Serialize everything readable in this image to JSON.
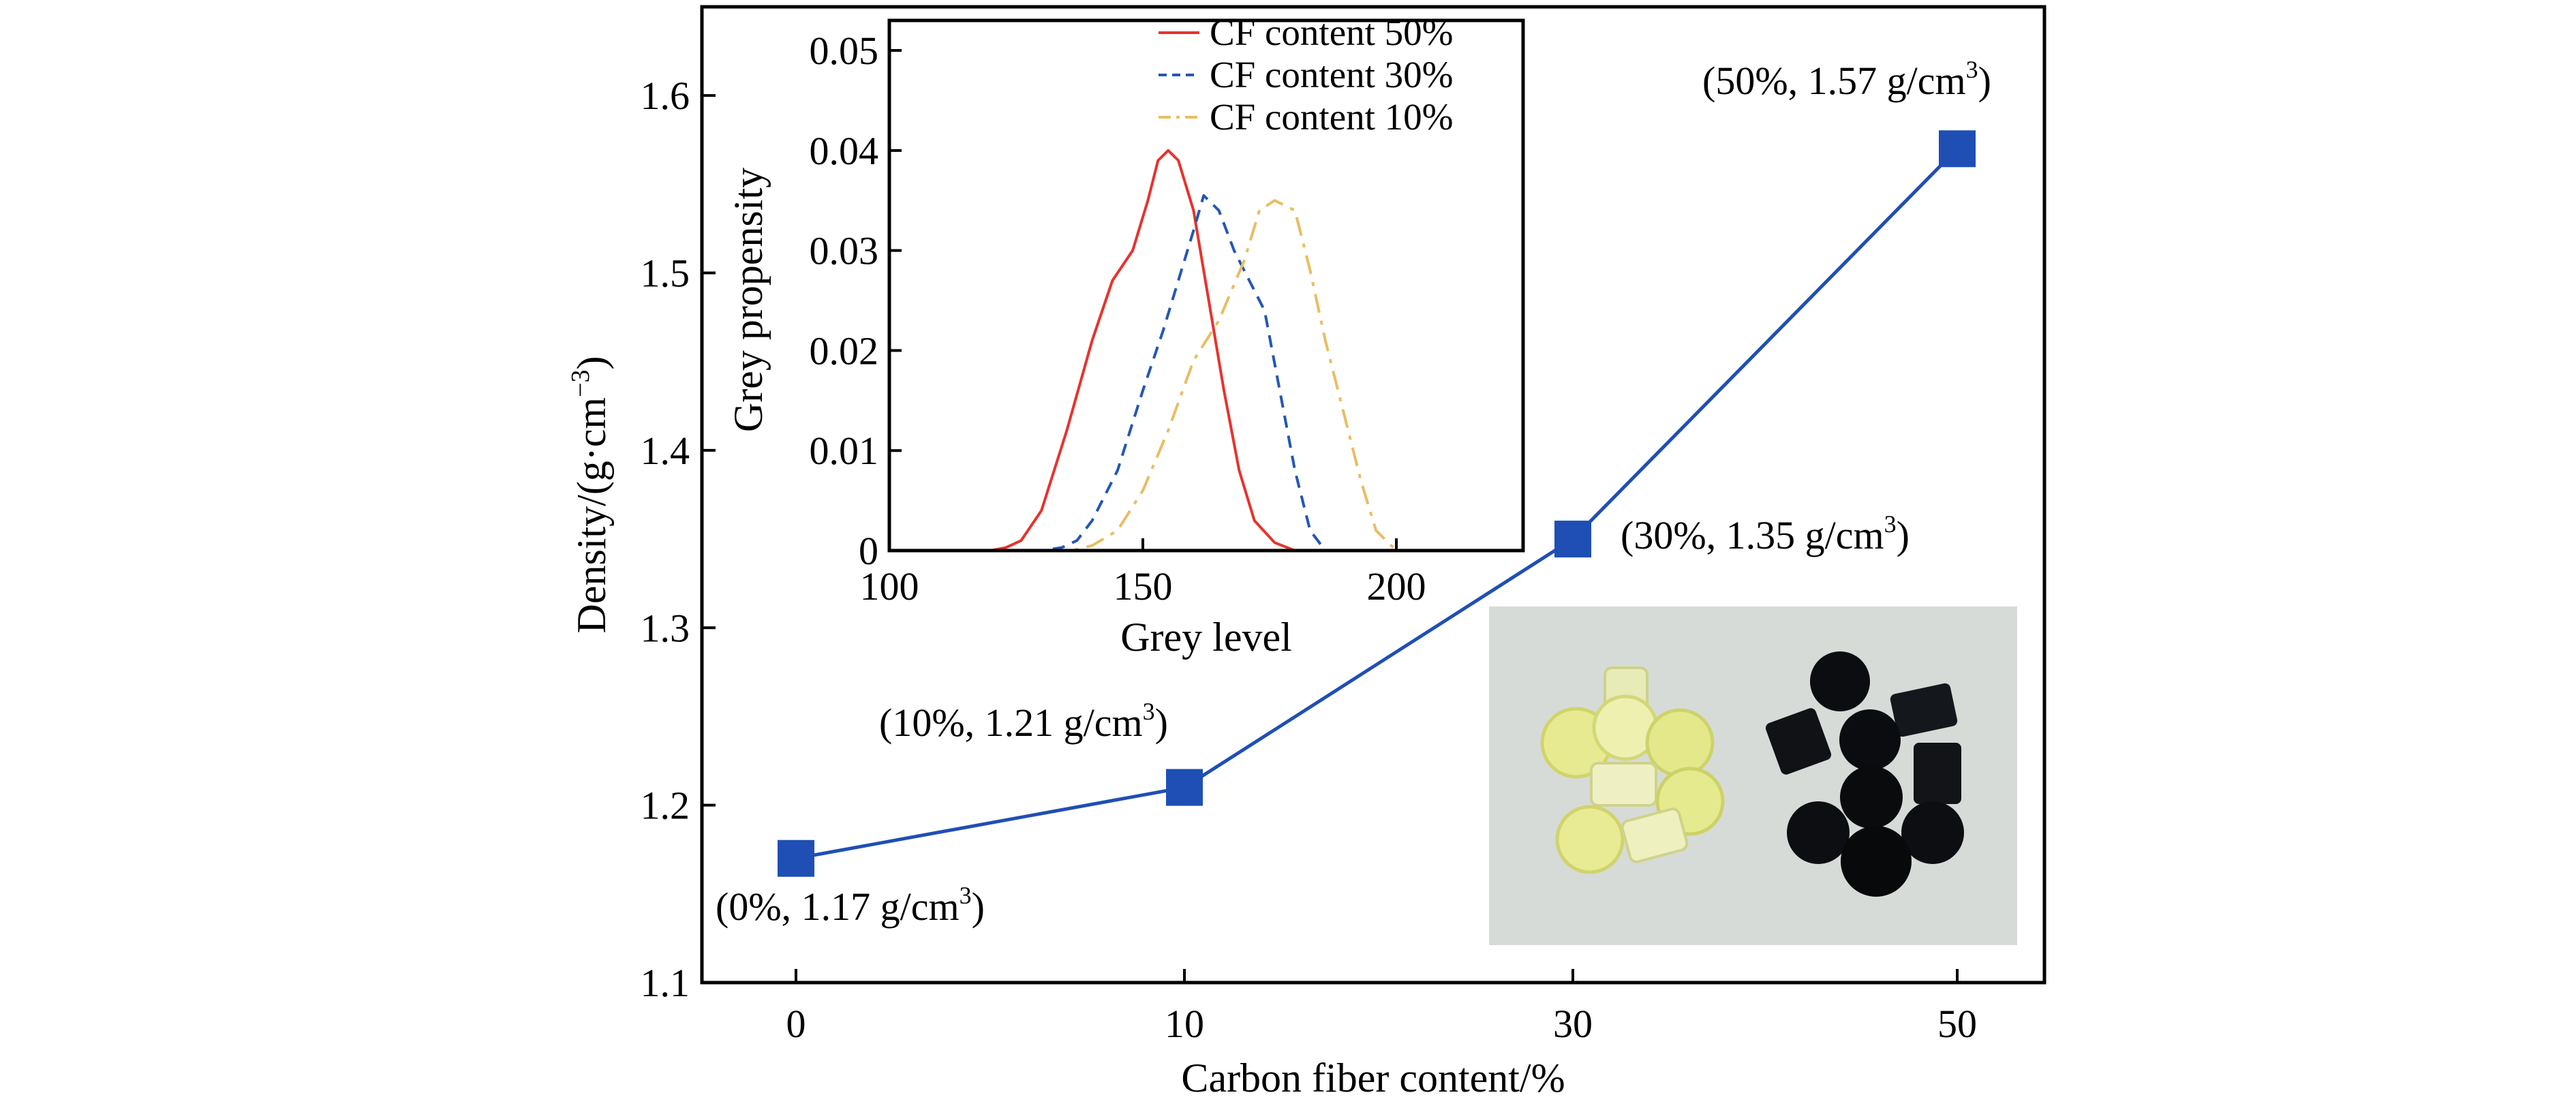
{
  "chart_data": [
    {
      "type": "line",
      "xlabel": "Carbon fiber content/%",
      "ylabel_main": "Density/(g·cm",
      "ylabel_sup": "−3",
      "ylabel_close": ")",
      "categories": [
        "0",
        "10",
        "30",
        "50"
      ],
      "series": [
        {
          "values": [
            1.17,
            1.21,
            1.35,
            1.57
          ],
          "color": "#1f4fb5"
        }
      ],
      "ylim": [
        1.1,
        1.65
      ],
      "yticks": [
        1.1,
        1.2,
        1.3,
        1.4,
        1.5,
        1.6
      ],
      "ytick_labels": [
        "1.1",
        "1.2",
        "1.3",
        "1.4",
        "1.5",
        "1.6"
      ],
      "annotations": [
        {
          "text": "(0%, 1.17 g/cm",
          "sup": "3",
          "close": ")"
        },
        {
          "text": "(10%, 1.21 g/cm",
          "sup": "3",
          "close": ")"
        },
        {
          "text": "(30%, 1.35 g/cm",
          "sup": "3",
          "close": ")"
        },
        {
          "text": "(50%, 1.57 g/cm",
          "sup": "3",
          "close": ")"
        }
      ]
    },
    {
      "type": "line",
      "xlabel": "Grey level",
      "ylabel": "Grey propensity",
      "xlim": [
        100,
        225
      ],
      "ylim": [
        0,
        0.053
      ],
      "xticks": [
        100,
        150,
        200
      ],
      "xtick_labels": [
        "100",
        "150",
        "200"
      ],
      "yticks": [
        0,
        0.01,
        0.02,
        0.03,
        0.04,
        0.05
      ],
      "ytick_labels": [
        "0",
        "0.01",
        "0.02",
        "0.03",
        "0.04",
        "0.05"
      ],
      "legend": "top-right",
      "series": [
        {
          "name": "CF content 50%",
          "color": "#e8322d",
          "dash": "solid",
          "x": [
            100,
            110,
            120,
            123,
            126,
            130,
            135,
            140,
            144,
            148,
            151,
            153,
            155,
            157,
            160,
            163,
            166,
            169,
            172,
            176,
            180,
            190,
            200,
            225
          ],
          "y": [
            0,
            0,
            0,
            0.0003,
            0.001,
            0.004,
            0.012,
            0.021,
            0.027,
            0.03,
            0.035,
            0.039,
            0.04,
            0.039,
            0.034,
            0.025,
            0.016,
            0.008,
            0.003,
            0.0008,
            0,
            0,
            0,
            0
          ]
        },
        {
          "name": "CF content 30%",
          "color": "#2457b3",
          "dash": "dash",
          "x": [
            100,
            125,
            130,
            134,
            137,
            140,
            145,
            150,
            154,
            157,
            160,
            162,
            165,
            168,
            171,
            174,
            177,
            180,
            183,
            186,
            190,
            200,
            225
          ],
          "y": [
            0,
            0,
            0,
            0.0003,
            0.001,
            0.003,
            0.008,
            0.016,
            0.022,
            0.027,
            0.032,
            0.0355,
            0.034,
            0.03,
            0.027,
            0.024,
            0.016,
            0.008,
            0.002,
            0,
            0,
            0,
            0
          ]
        },
        {
          "name": "CF content 10%",
          "color": "#e9bd63",
          "dash": "dashdot",
          "x": [
            100,
            130,
            136,
            140,
            145,
            150,
            155,
            160,
            165,
            170,
            173,
            176,
            180,
            183,
            186,
            190,
            193,
            196,
            200,
            205,
            225
          ],
          "y": [
            0,
            0,
            0,
            0.0005,
            0.002,
            0.006,
            0.012,
            0.019,
            0.023,
            0.029,
            0.034,
            0.035,
            0.034,
            0.028,
            0.021,
            0.013,
            0.007,
            0.002,
            0,
            0,
            0
          ]
        }
      ]
    }
  ]
}
